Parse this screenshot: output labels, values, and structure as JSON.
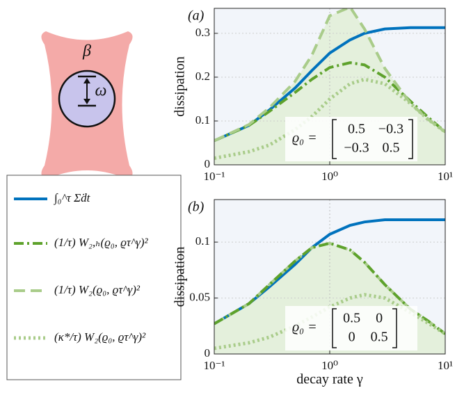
{
  "diagram": {
    "bath": "β",
    "frequency": "ω"
  },
  "chart_data": [
    {
      "type": "line",
      "panel": "(a)",
      "ylabel": "dissipation",
      "xlog": true,
      "grid": true,
      "background": "#f2f5fa",
      "x": [
        0.1,
        0.2,
        0.3,
        0.5,
        0.7,
        1,
        1.5,
        2,
        3,
        5,
        7,
        10
      ],
      "xlim": [
        0.1,
        10
      ],
      "xticks": [
        {
          "value": 0.1,
          "label": "10⁻¹"
        },
        {
          "value": 1,
          "label": "10⁰"
        },
        {
          "value": 10,
          "label": "10¹"
        }
      ],
      "ylim": [
        0,
        0.357
      ],
      "yticks": [
        0,
        0.1,
        0.2,
        0.3
      ],
      "annotation": {
        "lhs": "ϱ₀ =",
        "matrix": [
          [
            "0.5",
            "−0.3"
          ],
          [
            "−0.3",
            "0.5"
          ]
        ]
      },
      "series": [
        {
          "name": "∫₀^τ Σ̇dt",
          "color": "#0072bd",
          "style": "solid",
          "values": [
            0.055,
            0.09,
            0.125,
            0.175,
            0.215,
            0.255,
            0.285,
            0.3,
            0.31,
            0.313,
            0.313,
            0.313
          ]
        },
        {
          "name": "(1/τ) W₂,ₕ(ϱ₀, ϱτ^γ)²",
          "color": "#5ea22c",
          "style": "dashdot",
          "values": [
            0.055,
            0.09,
            0.122,
            0.165,
            0.195,
            0.222,
            0.233,
            0.228,
            0.2,
            0.145,
            0.11,
            0.075
          ]
        },
        {
          "name": "(1/τ) W₂(ϱ₀, ϱτ^γ)²",
          "color": "#a9cc8a",
          "style": "dashed",
          "fill": "#e4f0dc",
          "values": [
            0.055,
            0.092,
            0.13,
            0.19,
            0.25,
            0.34,
            0.36,
            0.31,
            0.22,
            0.14,
            0.105,
            0.075
          ]
        },
        {
          "name": "(κ*/τ) W₂(ϱ₀, ϱτ^γ)²",
          "color": "#a9cc8a",
          "style": "dotted",
          "values": [
            0.015,
            0.03,
            0.045,
            0.08,
            0.11,
            0.15,
            0.185,
            0.195,
            0.185,
            0.14,
            0.105,
            0.075
          ]
        }
      ]
    },
    {
      "type": "line",
      "panel": "(b)",
      "ylabel": "dissipation",
      "xlabel": "decay rate γ",
      "xlog": true,
      "grid": true,
      "background": "#f2f5fa",
      "x": [
        0.1,
        0.2,
        0.3,
        0.5,
        0.7,
        1,
        1.5,
        2,
        3,
        5,
        7,
        10
      ],
      "xlim": [
        0.1,
        10
      ],
      "xticks": [
        {
          "value": 0.1,
          "label": "10⁻¹"
        },
        {
          "value": 1,
          "label": "10⁰"
        },
        {
          "value": 10,
          "label": "10¹"
        }
      ],
      "ylim": [
        0,
        0.138
      ],
      "yticks": [
        0,
        0.05,
        0.1
      ],
      "annotation": {
        "lhs": "ϱ₀ =",
        "matrix": [
          [
            "0.5",
            "0"
          ],
          [
            "0",
            "0.5"
          ]
        ]
      },
      "series": [
        {
          "color": "#0072bd",
          "style": "solid",
          "values": [
            0.027,
            0.045,
            0.06,
            0.08,
            0.095,
            0.107,
            0.115,
            0.118,
            0.12,
            0.12,
            0.12,
            0.12
          ]
        },
        {
          "color": "#a9cc8a",
          "style": "dashed",
          "fill": "#e4f0dc",
          "values": [
            0.027,
            0.045,
            0.062,
            0.083,
            0.095,
            0.099,
            0.093,
            0.082,
            0.062,
            0.04,
            0.03,
            0.018
          ]
        },
        {
          "color": "#5ea22c",
          "style": "dashdot",
          "values": [
            0.027,
            0.045,
            0.062,
            0.083,
            0.095,
            0.099,
            0.093,
            0.082,
            0.062,
            0.04,
            0.03,
            0.018
          ]
        },
        {
          "color": "#a9cc8a",
          "style": "dotted",
          "values": [
            0.005,
            0.01,
            0.015,
            0.025,
            0.033,
            0.042,
            0.05,
            0.053,
            0.05,
            0.037,
            0.028,
            0.018
          ]
        }
      ]
    }
  ]
}
